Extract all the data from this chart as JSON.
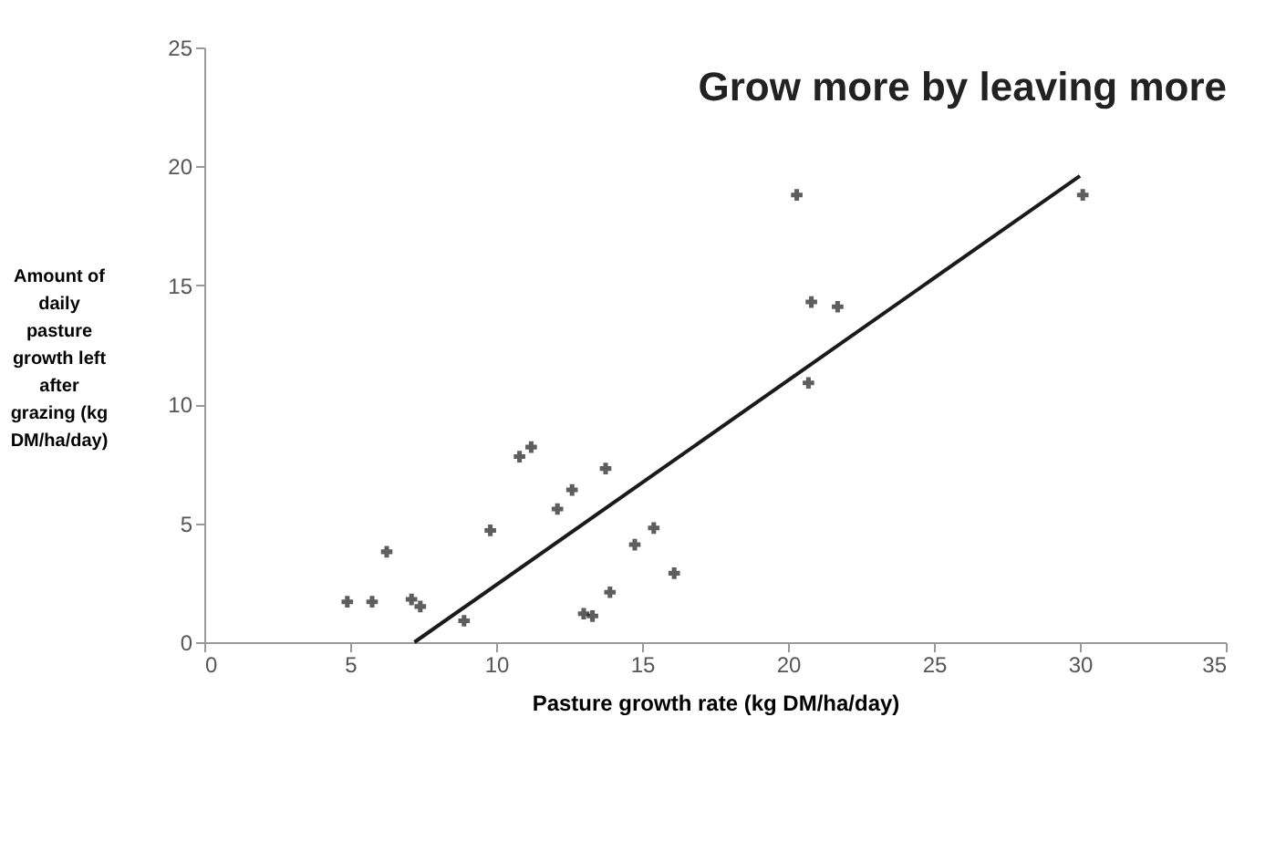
{
  "chart_data": {
    "type": "scatter",
    "title": "Grow more by leaving more",
    "xlabel": "Pasture growth rate (kg DM/ha/day)",
    "ylabel": "Amount of daily pasture growth left after grazing (kg DM/ha/day)",
    "xlim": [
      0,
      35
    ],
    "xticks": [
      0,
      5,
      10,
      15,
      20,
      25,
      30,
      35
    ],
    "ylim": [
      0,
      25
    ],
    "yticks": [
      0,
      5,
      10,
      15,
      20,
      25
    ],
    "grid": false,
    "series": [
      {
        "marker": "cross",
        "color": "#1a1a1a",
        "x": [
          4.9,
          5.75,
          6.25,
          7.1,
          7.4,
          8.9,
          9.8,
          10.8,
          11.2,
          12.1,
          12.6,
          13.75,
          13.0,
          13.3,
          13.9,
          14.75,
          15.4,
          16.1,
          20.3,
          20.8,
          21.7,
          20.7,
          30.1
        ],
        "values": [
          1.7,
          1.7,
          3.8,
          1.8,
          1.5,
          0.9,
          4.7,
          7.8,
          8.2,
          5.6,
          6.4,
          7.3,
          1.2,
          1.1,
          2.1,
          4.1,
          4.8,
          2.9,
          18.8,
          14.3,
          14.1,
          10.9,
          18.8
        ]
      },
      {
        "type": "line",
        "color": "#1a1a1a",
        "line_style": "solid",
        "x": [
          7.2,
          30.0
        ],
        "values": [
          0,
          19.6
        ]
      }
    ]
  }
}
